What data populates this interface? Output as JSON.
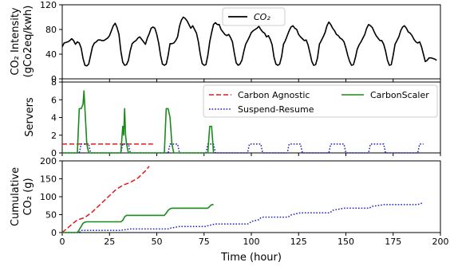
{
  "chart_data": [
    {
      "type": "line",
      "panel": "top",
      "ylabel_lines": [
        "CO₂ Intensity",
        "(gCo2eq/kwh)"
      ],
      "ylim": [
        0,
        120
      ],
      "yticks": [
        0,
        40,
        80,
        120
      ],
      "xlim": [
        0,
        200
      ],
      "grid": false,
      "legend_position": "top-center",
      "series": [
        {
          "name": "CO₂",
          "color": "#000000",
          "style": "solid",
          "x": [
            0,
            1,
            2,
            3,
            4,
            5,
            6,
            7,
            8,
            9,
            10,
            11,
            12,
            13,
            14,
            15,
            16,
            17,
            18,
            19,
            20,
            21,
            22,
            23,
            24,
            25,
            26,
            27,
            28,
            29,
            30,
            31,
            32,
            33,
            34,
            35,
            36,
            37,
            38,
            39,
            40,
            41,
            42,
            43,
            44,
            45,
            46,
            47,
            48,
            49,
            50,
            51,
            52,
            53,
            54,
            55,
            56,
            57,
            58,
            59,
            60,
            61,
            62,
            63,
            64,
            65,
            66,
            67,
            68,
            69,
            70,
            71,
            72,
            73,
            74,
            75,
            76,
            77,
            78,
            79,
            80,
            81,
            82,
            83,
            84,
            85,
            86,
            87,
            88,
            89,
            90,
            91,
            92,
            93,
            94,
            95,
            96,
            97,
            98,
            99,
            100,
            101,
            102,
            103,
            104,
            105,
            106,
            107,
            108,
            109,
            110,
            111,
            112,
            113,
            114,
            115,
            116,
            117,
            118,
            119,
            120,
            121,
            122,
            123,
            124,
            125,
            126,
            127,
            128,
            129,
            130,
            131,
            132,
            133,
            134,
            135,
            136,
            137,
            138,
            139,
            140,
            141,
            142,
            143,
            144,
            145,
            146,
            147,
            148,
            149,
            150,
            151,
            152,
            153,
            154,
            155,
            156,
            157,
            158,
            159,
            160,
            161,
            162,
            163,
            164,
            165,
            166,
            167,
            168,
            169,
            170,
            171,
            172,
            173,
            174,
            175,
            176,
            177,
            178,
            179,
            180,
            181,
            182,
            183,
            184,
            185,
            186,
            187,
            188,
            189,
            190,
            191,
            192,
            193,
            194,
            195,
            196,
            197,
            198
          ],
          "y": [
            52,
            58,
            59,
            60,
            62,
            65,
            62,
            56,
            60,
            58,
            50,
            33,
            22,
            21,
            24,
            38,
            52,
            58,
            60,
            63,
            63,
            62,
            62,
            64,
            66,
            70,
            78,
            86,
            90,
            83,
            72,
            45,
            27,
            22,
            23,
            30,
            46,
            57,
            60,
            62,
            66,
            68,
            64,
            60,
            56,
            66,
            73,
            82,
            84,
            82,
            72,
            58,
            38,
            24,
            22,
            24,
            38,
            57,
            57,
            58,
            62,
            68,
            85,
            95,
            100,
            98,
            94,
            88,
            82,
            86,
            80,
            74,
            60,
            40,
            25,
            22,
            23,
            38,
            60,
            75,
            88,
            91,
            88,
            88,
            80,
            76,
            72,
            70,
            72,
            67,
            60,
            42,
            26,
            22,
            24,
            30,
            44,
            56,
            62,
            68,
            75,
            78,
            80,
            82,
            85,
            80,
            76,
            74,
            68,
            70,
            64,
            55,
            35,
            24,
            22,
            24,
            36,
            56,
            62,
            70,
            78,
            84,
            86,
            82,
            80,
            72,
            68,
            65,
            62,
            63,
            55,
            42,
            28,
            22,
            23,
            34,
            56,
            62,
            68,
            75,
            86,
            92,
            88,
            82,
            78,
            72,
            70,
            66,
            64,
            60,
            50,
            38,
            28,
            22,
            23,
            34,
            48,
            55,
            60,
            66,
            72,
            82,
            88,
            86,
            83,
            76,
            70,
            66,
            62,
            62,
            56,
            45,
            30,
            22,
            23,
            38,
            56,
            62,
            68,
            78,
            84,
            86,
            82,
            76,
            74,
            70,
            64,
            60,
            58,
            60,
            52,
            40,
            28,
            30,
            34,
            34,
            33,
            32,
            30
          ]
        }
      ]
    },
    {
      "type": "line",
      "panel": "middle",
      "ylabel": "Servers",
      "ylim": [
        0,
        8
      ],
      "yticks": [
        0,
        2,
        4,
        6,
        8
      ],
      "xlim": [
        0,
        200
      ],
      "grid": false,
      "legend_position": "top-right",
      "series": [
        {
          "name": "Carbon Agnostic",
          "color": "#e31a1c",
          "style": "dashed",
          "x": [
            0,
            48
          ],
          "y": [
            1,
            1
          ]
        },
        {
          "name": "Suspend-Resume",
          "color": "#1f1fbf",
          "style": "dotted",
          "x": [
            0,
            9,
            10,
            11,
            12,
            13,
            14,
            15,
            31,
            32,
            33,
            34,
            35,
            36,
            56,
            57,
            58,
            59,
            60,
            61,
            62,
            76,
            77,
            78,
            79,
            80,
            81,
            98,
            99,
            100,
            104,
            105,
            106,
            119,
            120,
            121,
            125,
            126,
            127,
            141,
            142,
            143,
            148,
            149,
            150,
            162,
            163,
            164,
            169,
            170,
            171,
            188,
            189,
            190,
            191
          ],
          "y": [
            0,
            0,
            1,
            1,
            1,
            1,
            1,
            0,
            0,
            1,
            1,
            1,
            1,
            0,
            0,
            1,
            1,
            1,
            1,
            1,
            0,
            0,
            1,
            1,
            1,
            1,
            0,
            0,
            1,
            1,
            1,
            1,
            0,
            0,
            1,
            1,
            1,
            1,
            0,
            0,
            1,
            1,
            1,
            1,
            0,
            0,
            1,
            1,
            1,
            1,
            0,
            0,
            1,
            1,
            1
          ]
        },
        {
          "name": "CarbonScaler",
          "color": "#1a8a1a",
          "style": "solid",
          "x": [
            0,
            8,
            9,
            10,
            11,
            11.5,
            12,
            13,
            14,
            31,
            32,
            32.5,
            33,
            33.5,
            34,
            35,
            54,
            55,
            56,
            57,
            58,
            59,
            77,
            78,
            79,
            80
          ],
          "y": [
            0,
            0,
            5,
            5,
            5.5,
            7,
            5,
            1,
            0,
            0,
            3,
            2,
            5,
            2,
            1,
            0,
            0,
            5,
            5,
            4,
            1,
            0,
            0,
            3,
            3,
            0
          ]
        }
      ]
    },
    {
      "type": "line",
      "panel": "bottom",
      "ylabel_lines": [
        "Cumulative",
        "CO₂ (g)"
      ],
      "xlabel": "Time (hour)",
      "ylim": [
        0,
        200
      ],
      "yticks": [
        0,
        50,
        100,
        150,
        200
      ],
      "xlim": [
        0,
        200
      ],
      "xticks": [
        0,
        25,
        50,
        75,
        100,
        125,
        150,
        175,
        200
      ],
      "grid": false,
      "series": [
        {
          "name": "Carbon Agnostic",
          "color": "#e31a1c",
          "style": "dashed",
          "x": [
            0,
            4,
            6,
            8,
            12,
            16,
            20,
            24,
            28,
            32,
            36,
            40,
            44,
            46
          ],
          "y": [
            0,
            18,
            27,
            35,
            42,
            58,
            78,
            98,
            118,
            132,
            140,
            152,
            172,
            185
          ]
        },
        {
          "name": "Suspend-Resume",
          "color": "#1f1fbf",
          "style": "dotted",
          "x": [
            0,
            9,
            10,
            15,
            31,
            32,
            36,
            56,
            57,
            62,
            76,
            77,
            81,
            98,
            99,
            100,
            104,
            105,
            106,
            119,
            120,
            121,
            125,
            126,
            127,
            141,
            142,
            143,
            148,
            149,
            150,
            162,
            163,
            164,
            169,
            170,
            171,
            188,
            189,
            191
          ],
          "y": [
            0,
            0,
            6,
            6,
            6,
            7,
            10,
            10,
            12,
            17,
            17,
            19,
            24,
            24,
            26,
            31,
            36,
            41,
            43,
            43,
            45,
            49,
            54,
            55,
            55,
            55,
            57,
            62,
            67,
            68,
            68,
            68,
            70,
            73,
            77,
            78,
            78,
            78,
            80,
            83
          ]
        },
        {
          "name": "CarbonScaler",
          "color": "#1a8a1a",
          "style": "solid",
          "x": [
            0,
            8,
            9,
            10,
            11,
            12,
            13,
            14,
            31,
            32,
            33,
            34,
            35,
            54,
            55,
            56,
            57,
            58,
            59,
            77,
            78,
            79,
            80
          ],
          "y": [
            0,
            0,
            8,
            17,
            26,
            29,
            30,
            30,
            30,
            34,
            44,
            48,
            48,
            48,
            54,
            62,
            66,
            68,
            68,
            68,
            73,
            78,
            78
          ]
        }
      ]
    }
  ]
}
